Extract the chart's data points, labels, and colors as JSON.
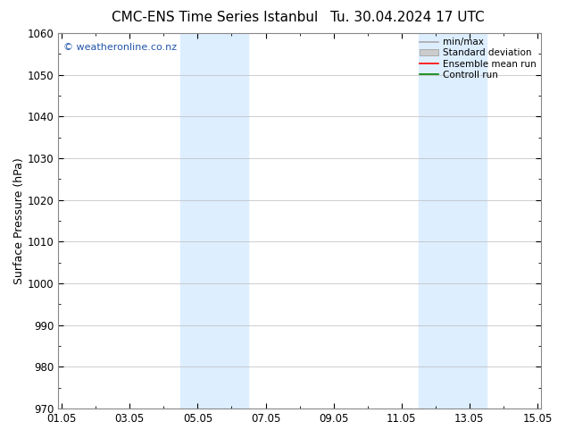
{
  "title": "CMC-ENS Time Series Istanbul",
  "title2": "Tu. 30.04.2024 17 UTC",
  "ylabel": "Surface Pressure (hPa)",
  "ylim": [
    970,
    1060
  ],
  "yticks": [
    970,
    980,
    990,
    1000,
    1010,
    1020,
    1030,
    1040,
    1050,
    1060
  ],
  "xlabel": "",
  "xtick_labels": [
    "01.05",
    "03.05",
    "05.05",
    "07.05",
    "09.05",
    "11.05",
    "13.05",
    "15.05"
  ],
  "xtick_positions": [
    0,
    2,
    4,
    6,
    8,
    10,
    12,
    14
  ],
  "xlim": [
    -0.1,
    14.1
  ],
  "shaded_bands": [
    {
      "x_start": 3.5,
      "x_end": 5.5,
      "color": "#ddeeff"
    },
    {
      "x_start": 10.5,
      "x_end": 12.5,
      "color": "#ddeeff"
    }
  ],
  "watermark": "© weatheronline.co.nz",
  "legend_items": [
    {
      "label": "min/max",
      "color": "#aaaaaa",
      "lw": 1.2,
      "linestyle": "-"
    },
    {
      "label": "Standard deviation",
      "color": "#cccccc",
      "lw": 6,
      "linestyle": "-"
    },
    {
      "label": "Ensemble mean run",
      "color": "red",
      "lw": 1.2,
      "linestyle": "-"
    },
    {
      "label": "Controll run",
      "color": "green",
      "lw": 1.2,
      "linestyle": "-"
    }
  ],
  "background_color": "#ffffff",
  "plot_background": "#ffffff",
  "grid_color": "#bbbbbb",
  "title_fontsize": 11,
  "tick_fontsize": 8.5,
  "ylabel_fontsize": 9,
  "watermark_color": "#2255aa"
}
